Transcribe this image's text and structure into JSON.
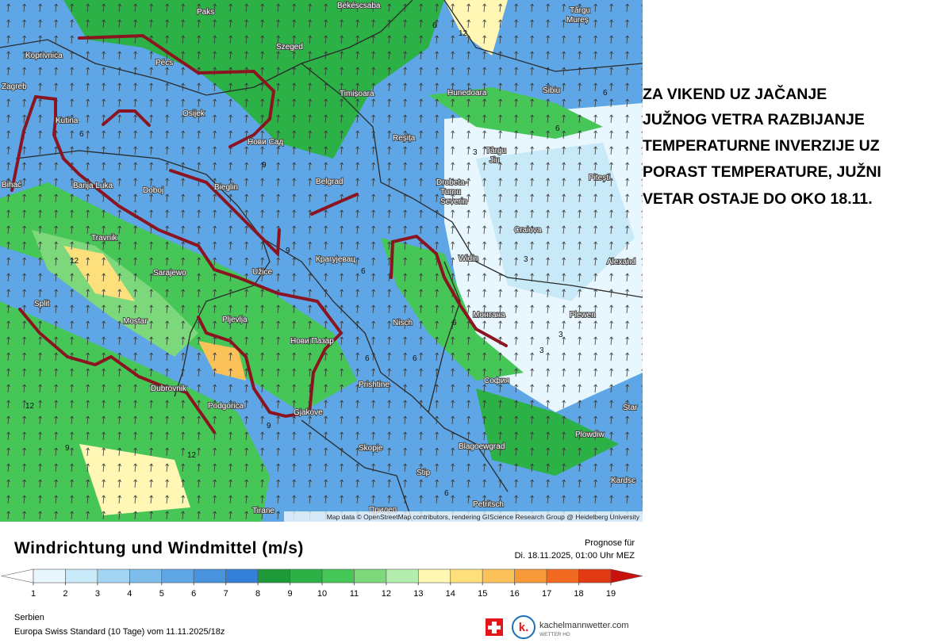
{
  "map": {
    "cities": [
      "Paks",
      "Békéscsaba",
      "Târgu",
      "Mureș",
      "Koprivnica",
      "Pécs",
      "Szeged",
      "Zagreb",
      "Hunedoara",
      "Sibiu",
      "Timișoara",
      "Osijek",
      "Kutina",
      "Нови Сад",
      "Reșița",
      "Târgu",
      "Jiu",
      "Bihać",
      "Banja Luka",
      "Doboj",
      "Bieglin",
      "Belgrad",
      "Drobeta-",
      "Turnu",
      "Severin",
      "Pitești",
      "Craiova",
      "Alexand",
      "Travnik",
      "Крагујевац",
      "Widin",
      "Sarajewo",
      "Užice",
      "Split",
      "Mostar",
      "Pljevlja",
      "Nisch",
      "Монтана",
      "Plewen",
      "Нови Пазар",
      "Dubrovnik",
      "Prishtine",
      "София",
      "Podgorica",
      "Gjakove",
      "Star",
      "Plowdiw",
      "Skopje",
      "Blagoewgrad",
      "Stip",
      "Kardsc",
      "Tirane",
      "Прилеп",
      "Petritsch"
    ],
    "contour_labels": [
      12,
      6,
      6,
      6,
      3,
      9,
      3,
      6,
      12,
      6,
      9,
      3,
      6,
      6,
      12,
      9,
      12,
      6,
      3,
      6,
      9
    ],
    "attribution": "Map data © OpenStreetMap contributors, rendering GIScience Research Group @ Heidelberg University"
  },
  "annotation": [
    "ZA VIKEND UZ JAČANJE",
    "JUŽNOG VETRA RAZBIJANJE",
    "TEMPERATURNE INVERZIJE UZ",
    "PORAST TEMPERATURE, JUŽNI",
    "VETAR OSTAJE DO OKO 18.11."
  ],
  "legend": {
    "title": "Windrichtung und Windmittel (m/s)",
    "forecast_label": "Prognose für",
    "forecast_time": "Di. 18.11.2025, 01:00 Uhr MEZ",
    "ticks": [
      1,
      2,
      3,
      4,
      5,
      6,
      7,
      8,
      9,
      10,
      11,
      12,
      13,
      14,
      15,
      16,
      17,
      18,
      19
    ],
    "colors": [
      "#ffffff",
      "#e8f7fd",
      "#c8e9f8",
      "#a3d5f3",
      "#7dbdec",
      "#5ea6e5",
      "#4992de",
      "#3480d8",
      "#1f9a3a",
      "#2cb146",
      "#45c657",
      "#7cd87a",
      "#b5edaf",
      "#fff7b3",
      "#fde07c",
      "#fbc25a",
      "#f79a3a",
      "#f26a22",
      "#e23b14",
      "#c8100c"
    ]
  },
  "footer": {
    "region": "Serbien",
    "model": "Europa Swiss Standard (10 Tage) vom 11.11.2025/18z",
    "brand": "kachelmannwetter.com",
    "brand_sub": "WETTER HD",
    "logo_letter": "k."
  }
}
